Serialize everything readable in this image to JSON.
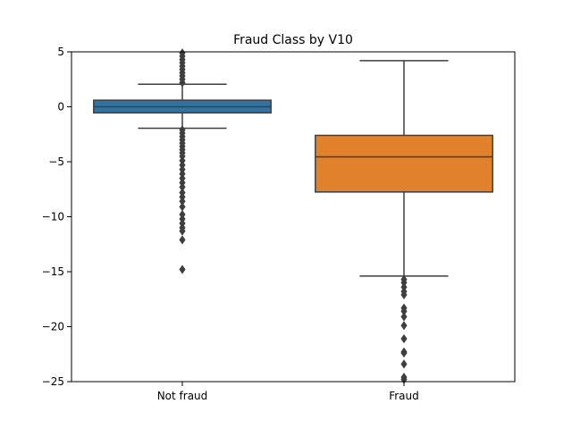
{
  "chart_data": {
    "type": "box",
    "title": "Fraud Class by V10",
    "xlabel": "",
    "ylabel": "",
    "ylim": [
      -25,
      5
    ],
    "yticks": [
      5,
      0,
      -5,
      -10,
      -15,
      -20,
      -25
    ],
    "ytick_labels": [
      "5",
      "0",
      "−5",
      "−10",
      "−15",
      "−20",
      "−25"
    ],
    "grid": false,
    "categories": [
      "Not fraud",
      "Fraud"
    ],
    "boxes": [
      {
        "name": "Not fraud",
        "color": "#3274a1",
        "q1": -0.55,
        "median": 0.0,
        "q3": 0.6,
        "whisker_low": -1.95,
        "whisker_high": 2.05,
        "outliers": [
          2.2,
          2.5,
          2.8,
          3.1,
          3.4,
          3.7,
          4.0,
          4.3,
          4.6,
          4.9,
          -2.1,
          -2.4,
          -2.7,
          -3.0,
          -3.3,
          -3.6,
          -3.9,
          -4.2,
          -4.5,
          -4.9,
          -5.3,
          -5.7,
          -6.1,
          -6.5,
          -6.9,
          -7.3,
          -7.8,
          -8.2,
          -8.6,
          -9.1,
          -9.8,
          -10.2,
          -10.6,
          -11.0,
          -11.3,
          -12.1,
          -14.8
        ]
      },
      {
        "name": "Fraud",
        "color": "#e1812c",
        "q1": -7.75,
        "median": -4.55,
        "q3": -2.6,
        "whisker_low": -15.4,
        "whisker_high": 4.2,
        "outliers": [
          -15.7,
          -16.0,
          -16.4,
          -16.8,
          -17.1,
          -18.3,
          -18.6,
          -19.1,
          -19.9,
          -21.1,
          -22.3,
          -22.4,
          -23.4,
          -24.6,
          -24.8
        ]
      }
    ]
  }
}
